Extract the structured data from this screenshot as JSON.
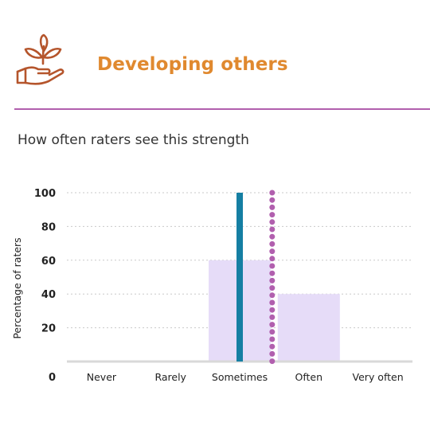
{
  "header": {
    "title": "Developing others",
    "logo_icon": "hand-with-sprouting-plant-icon"
  },
  "subtitle": "How often raters see this strength",
  "colors": {
    "accent": "#e0892f",
    "logo": "#b5552c",
    "rule": "#b15fae",
    "bar": "#e6dcf8",
    "self_marker": "#157fa3",
    "norm_marker": "#b15fae",
    "axis": "#d9d9d9",
    "grid": "#c9c9c9"
  },
  "chart_data": {
    "type": "bar",
    "categories": [
      "Never",
      "Rarely",
      "Sometimes",
      "Often",
      "Very often"
    ],
    "values": [
      0,
      0,
      60,
      40,
      0
    ],
    "ylabel": "Percentage of raters",
    "xlabel": "",
    "ylim": [
      0,
      100
    ],
    "yticks": [
      0,
      20,
      40,
      60,
      80,
      100
    ],
    "grid": true,
    "markers": [
      {
        "style": "solid",
        "x": 2.0,
        "color": "#157fa3"
      },
      {
        "style": "dotted",
        "x": 2.47,
        "color": "#b15fae"
      }
    ]
  }
}
